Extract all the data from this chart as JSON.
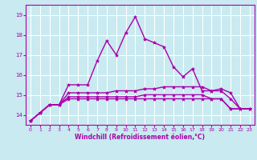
{
  "xlabel": "Windchill (Refroidissement éolien,°C)",
  "background_color": "#c8eaf0",
  "grid_color": "#ffffff",
  "line_color": "#aa00aa",
  "xlim": [
    -0.5,
    23.5
  ],
  "ylim": [
    13.5,
    19.5
  ],
  "yticks": [
    14,
    15,
    16,
    17,
    18,
    19
  ],
  "xticks": [
    0,
    1,
    2,
    3,
    4,
    5,
    6,
    7,
    8,
    9,
    10,
    11,
    12,
    13,
    14,
    15,
    16,
    17,
    18,
    19,
    20,
    21,
    22,
    23
  ],
  "series": [
    [
      13.7,
      14.1,
      14.5,
      14.5,
      15.5,
      15.5,
      15.5,
      16.7,
      17.7,
      17.0,
      18.1,
      18.9,
      17.8,
      17.6,
      17.4,
      16.4,
      15.9,
      16.3,
      15.2,
      15.2,
      15.3,
      15.1,
      14.3,
      14.3
    ],
    [
      13.7,
      14.1,
      14.5,
      14.5,
      14.8,
      14.8,
      14.8,
      14.8,
      14.8,
      14.8,
      14.8,
      14.8,
      14.8,
      14.8,
      14.8,
      14.8,
      14.8,
      14.8,
      14.8,
      14.8,
      14.8,
      14.3,
      14.3,
      14.3
    ],
    [
      13.7,
      14.1,
      14.5,
      14.5,
      14.9,
      14.9,
      14.9,
      14.9,
      14.9,
      14.9,
      14.9,
      14.9,
      15.0,
      15.0,
      15.0,
      15.0,
      15.0,
      15.0,
      15.0,
      14.8,
      14.8,
      14.3,
      14.3,
      14.3
    ],
    [
      13.7,
      14.1,
      14.5,
      14.5,
      15.1,
      15.1,
      15.1,
      15.1,
      15.1,
      15.2,
      15.2,
      15.2,
      15.3,
      15.3,
      15.4,
      15.4,
      15.4,
      15.4,
      15.4,
      15.2,
      15.2,
      14.8,
      14.3,
      14.3
    ]
  ],
  "marker": "*",
  "markersize": 3,
  "linewidth": 1.0,
  "tick_fontsize": 5,
  "xlabel_fontsize": 5.5
}
